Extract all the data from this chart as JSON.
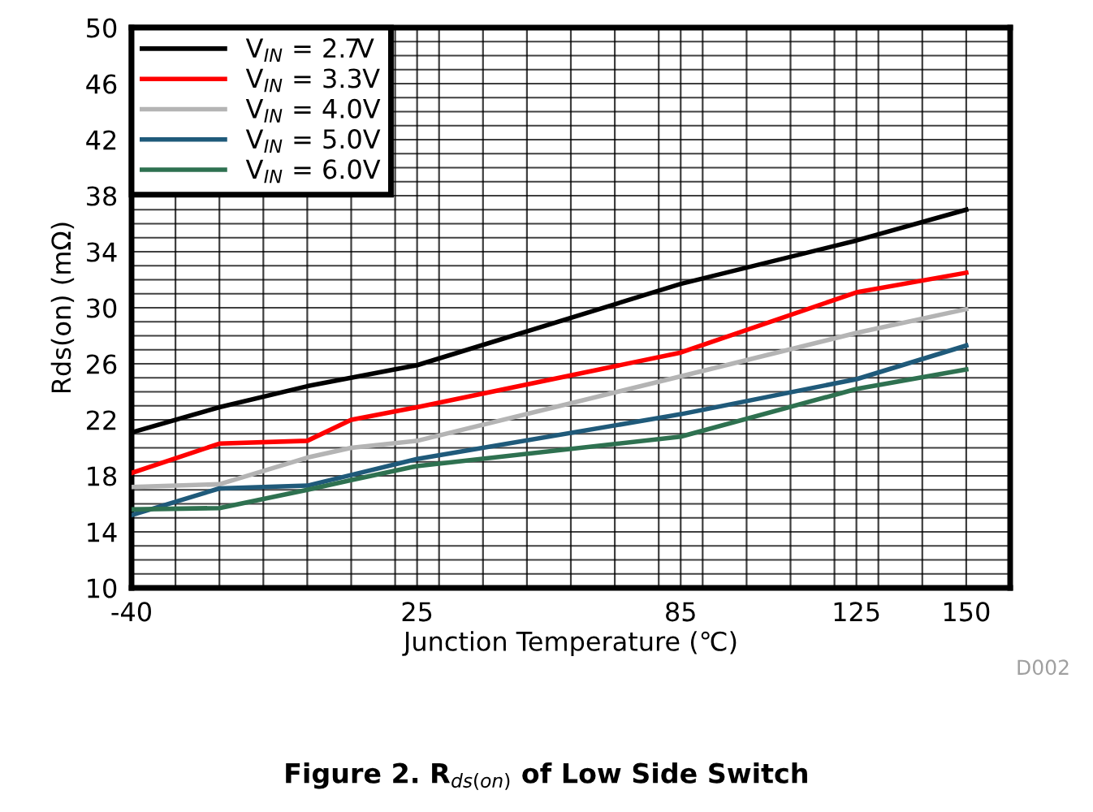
{
  "chart_data": {
    "type": "line",
    "title": "Figure 2. R$_{ds(on)}$ of Low Side Switch",
    "xlabel": "Junction Temperature (℃)",
    "ylabel": "Rds(on) (mΩ)",
    "annotations": [
      "D002"
    ],
    "series": [
      {
        "name": "V$_{IN}$ = 2.7V",
        "color": "#000000",
        "x": [
          -40,
          -20,
          0,
          25,
          85,
          125,
          150
        ],
        "values": [
          21.1,
          22.9,
          24.4,
          25.9,
          31.7,
          34.8,
          37.0
        ]
      },
      {
        "name": "V$_{IN}$ = 3.3V",
        "color": "#ff0000",
        "x": [
          -40,
          -20,
          0,
          10,
          25,
          85,
          125,
          150
        ],
        "values": [
          18.2,
          20.3,
          20.5,
          22.0,
          22.9,
          26.8,
          31.1,
          32.5
        ]
      },
      {
        "name": "V$_{IN}$ = 4.0V",
        "color": "#b4b4b4",
        "x": [
          -40,
          -20,
          0,
          10,
          25,
          85,
          125,
          150
        ],
        "values": [
          17.2,
          17.4,
          19.3,
          20.0,
          20.5,
          25.1,
          28.2,
          29.9
        ]
      },
      {
        "name": "V$_{IN}$ = 5.0V",
        "color": "#1f5a7a",
        "x": [
          -40,
          -20,
          0,
          25,
          85,
          125,
          150
        ],
        "values": [
          15.2,
          17.1,
          17.3,
          19.2,
          22.4,
          24.9,
          27.3
        ]
      },
      {
        "name": "V$_{IN}$ = 6.0V",
        "color": "#2e7150",
        "x": [
          -40,
          -20,
          0,
          10,
          25,
          85,
          125,
          150
        ],
        "values": [
          15.6,
          15.7,
          17.0,
          17.7,
          18.7,
          20.8,
          24.2,
          25.6
        ]
      }
    ],
    "xlim": [
      -40,
      160
    ],
    "xticks": [
      -40,
      25,
      85,
      125,
      150
    ],
    "ylim": [
      10,
      50
    ],
    "yticks": [
      10,
      14,
      18,
      22,
      26,
      30,
      34,
      38,
      42,
      46,
      50
    ],
    "grid": true,
    "legend": "top left",
    "line_style": "solid",
    "marker": "none"
  }
}
